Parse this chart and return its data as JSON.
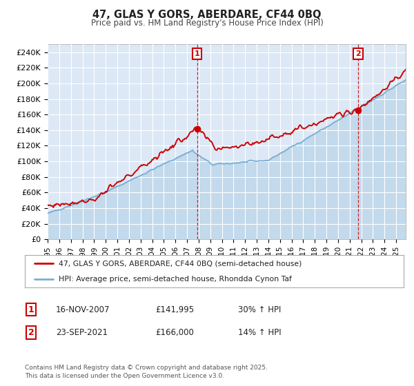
{
  "title": "47, GLAS Y GORS, ABERDARE, CF44 0BQ",
  "subtitle": "Price paid vs. HM Land Registry's House Price Index (HPI)",
  "ylabel_ticks": [
    "£0",
    "£20K",
    "£40K",
    "£60K",
    "£80K",
    "£100K",
    "£120K",
    "£140K",
    "£160K",
    "£180K",
    "£200K",
    "£220K",
    "£240K"
  ],
  "ytick_vals": [
    0,
    20000,
    40000,
    60000,
    80000,
    100000,
    120000,
    140000,
    160000,
    180000,
    200000,
    220000,
    240000
  ],
  "ylim": [
    0,
    250000
  ],
  "xlim_start": 1995.0,
  "xlim_end": 2025.83,
  "sale1_date": 2007.88,
  "sale1_price": 141995,
  "sale1_label": "1",
  "sale1_hpi_pct": "30% ↑ HPI",
  "sale1_date_str": "16-NOV-2007",
  "sale2_date": 2021.73,
  "sale2_price": 166000,
  "sale2_label": "2",
  "sale2_hpi_pct": "14% ↑ HPI",
  "sale2_date_str": "23-SEP-2021",
  "legend_line1": "47, GLAS Y GORS, ABERDARE, CF44 0BQ (semi-detached house)",
  "legend_line2": "HPI: Average price, semi-detached house, Rhondda Cynon Taf",
  "footer": "Contains HM Land Registry data © Crown copyright and database right 2025.\nThis data is licensed under the Open Government Licence v3.0.",
  "line_color_red": "#cc0000",
  "line_color_blue": "#7aaed4",
  "bg_color": "#dce8f5",
  "grid_color": "#ffffff",
  "annotation_box_color": "#cc0000",
  "x_ticks": [
    1995,
    1996,
    1997,
    1998,
    1999,
    2000,
    2001,
    2002,
    2003,
    2004,
    2005,
    2006,
    2007,
    2008,
    2009,
    2010,
    2011,
    2012,
    2013,
    2014,
    2015,
    2016,
    2017,
    2018,
    2019,
    2020,
    2021,
    2022,
    2023,
    2024,
    2025
  ]
}
